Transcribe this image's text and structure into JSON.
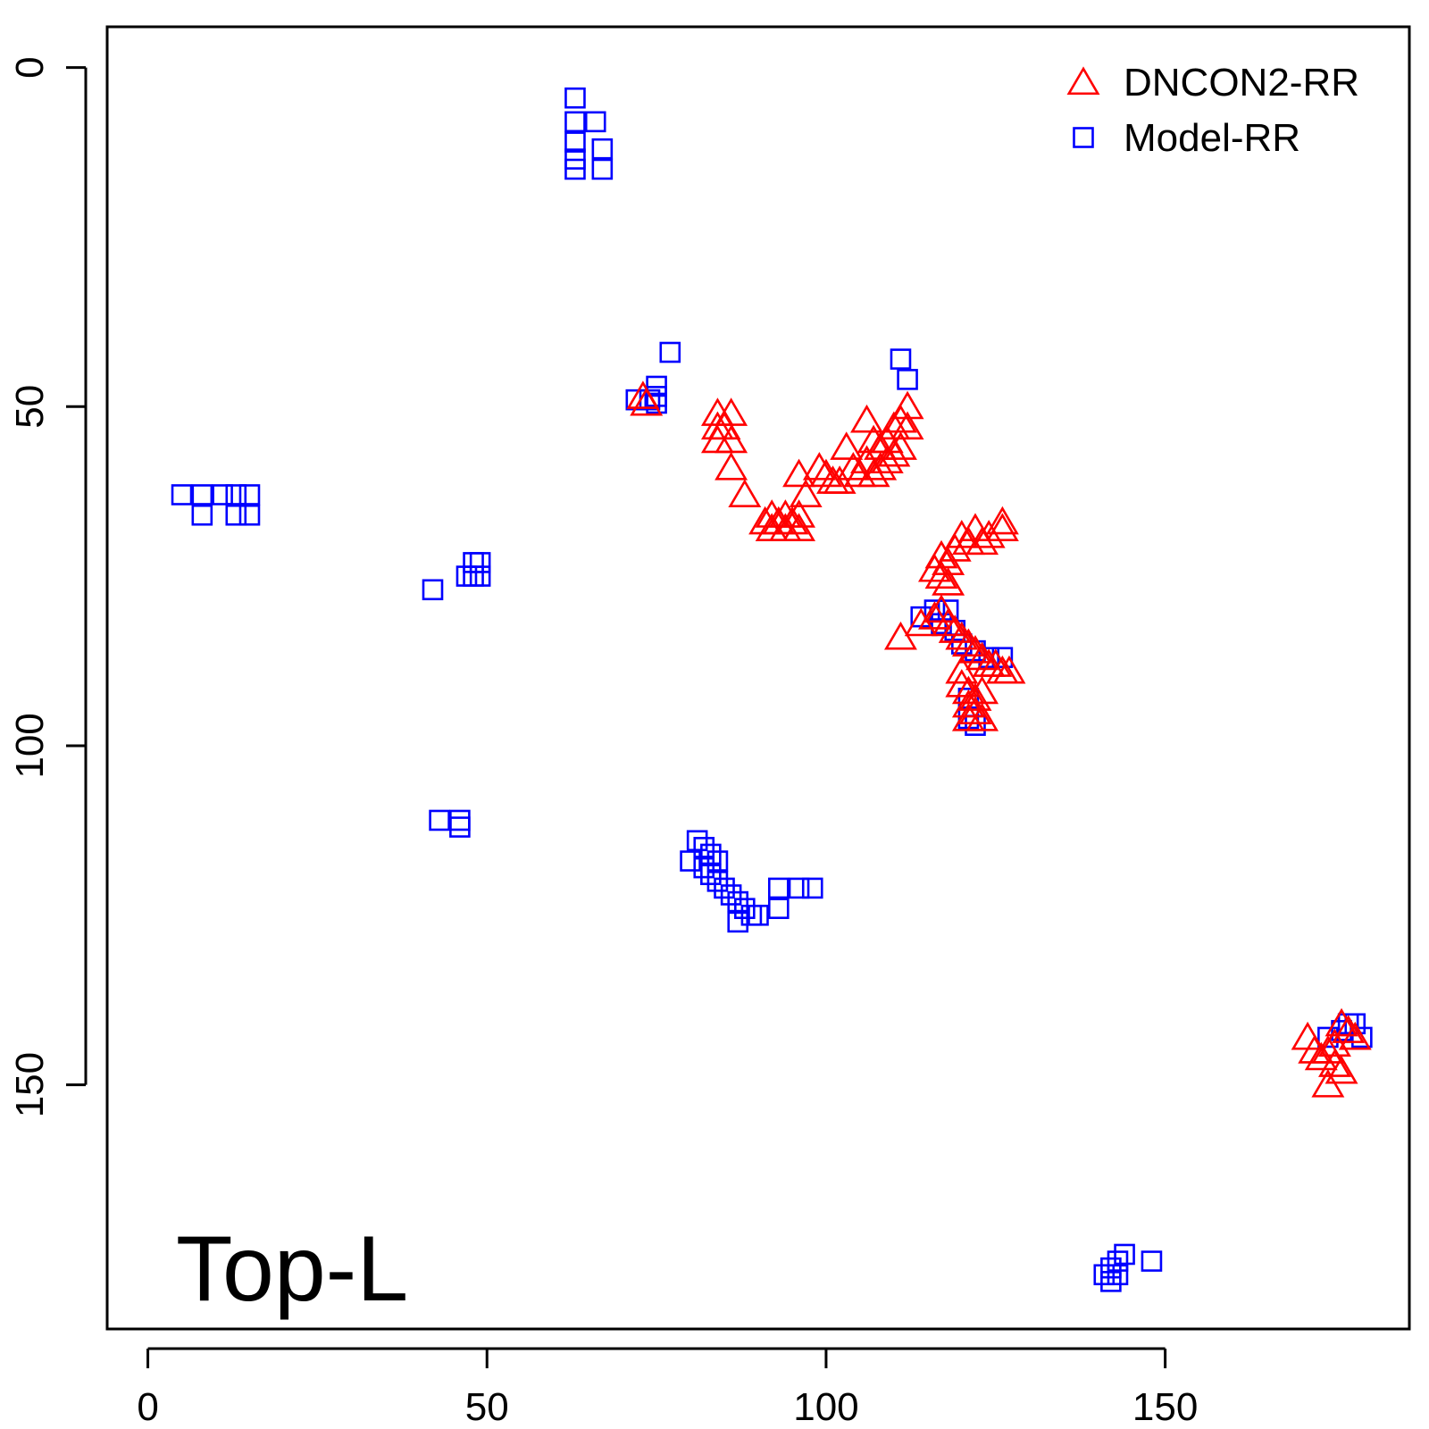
{
  "chart_data": {
    "type": "scatter",
    "title": "",
    "xlabel": "",
    "ylabel": "",
    "annotation": "Top-L",
    "xlim": [
      -6,
      186
    ],
    "ylim": [
      -6,
      186
    ],
    "y_inverted": true,
    "x_ticks": [
      0,
      50,
      100,
      150
    ],
    "y_ticks": [
      0,
      50,
      100,
      150
    ],
    "legend_position": "top-right",
    "series": [
      {
        "name": "DNCON2-RR",
        "marker": "triangle",
        "color": "#ff0000",
        "points": [
          [
            73,
            48.5
          ],
          [
            73.5,
            49.5
          ],
          [
            84,
            51
          ],
          [
            86,
            51
          ],
          [
            84,
            53
          ],
          [
            85,
            53
          ],
          [
            84,
            55
          ],
          [
            86,
            55
          ],
          [
            86,
            59
          ],
          [
            88,
            63
          ],
          [
            92,
            66
          ],
          [
            94,
            66
          ],
          [
            96,
            66
          ],
          [
            91,
            67
          ],
          [
            93,
            67
          ],
          [
            95,
            67
          ],
          [
            92,
            68
          ],
          [
            94,
            68
          ],
          [
            96,
            68
          ],
          [
            96,
            60
          ],
          [
            97,
            63
          ],
          [
            99,
            59
          ],
          [
            100,
            60
          ],
          [
            101,
            61
          ],
          [
            102,
            61
          ],
          [
            103,
            56
          ],
          [
            104,
            59
          ],
          [
            105,
            60
          ],
          [
            106,
            58
          ],
          [
            107,
            60
          ],
          [
            107,
            55
          ],
          [
            108,
            56
          ],
          [
            108,
            59
          ],
          [
            109,
            58
          ],
          [
            109,
            55
          ],
          [
            106,
            52
          ],
          [
            110,
            53
          ],
          [
            111,
            52
          ],
          [
            110,
            57
          ],
          [
            111,
            56
          ],
          [
            112,
            53
          ],
          [
            112,
            50
          ],
          [
            116,
            74
          ],
          [
            117,
            72
          ],
          [
            118,
            73
          ],
          [
            119,
            71
          ],
          [
            120,
            69
          ],
          [
            121,
            70
          ],
          [
            122,
            68
          ],
          [
            123,
            70
          ],
          [
            124,
            69
          ],
          [
            126,
            67
          ],
          [
            126,
            68
          ],
          [
            117,
            75
          ],
          [
            118,
            76
          ],
          [
            111,
            84
          ],
          [
            114,
            82
          ],
          [
            116,
            81
          ],
          [
            117,
            80
          ],
          [
            118,
            82
          ],
          [
            119,
            83
          ],
          [
            120,
            84
          ],
          [
            121,
            85
          ],
          [
            122,
            86
          ],
          [
            123,
            87
          ],
          [
            124,
            88
          ],
          [
            125,
            88
          ],
          [
            126,
            89
          ],
          [
            127,
            89
          ],
          [
            120,
            89
          ],
          [
            120,
            91
          ],
          [
            121,
            92
          ],
          [
            121,
            94
          ],
          [
            122,
            93
          ],
          [
            123,
            92
          ],
          [
            122,
            95
          ],
          [
            123,
            96
          ],
          [
            121,
            96
          ],
          [
            171,
            143
          ],
          [
            172,
            145
          ],
          [
            173,
            146
          ],
          [
            174,
            145
          ],
          [
            175,
            144
          ],
          [
            175,
            147
          ],
          [
            176,
            148
          ],
          [
            174,
            150
          ],
          [
            176,
            141
          ],
          [
            177,
            142
          ],
          [
            178,
            143
          ]
        ]
      },
      {
        "name": "Model-RR",
        "marker": "square",
        "color": "#0000ff",
        "points": [
          [
            63,
            4.5
          ],
          [
            63,
            8
          ],
          [
            63,
            11
          ],
          [
            63,
            13.5
          ],
          [
            63,
            15
          ],
          [
            66,
            8
          ],
          [
            67,
            12
          ],
          [
            67,
            15
          ],
          [
            77,
            42
          ],
          [
            75,
            47
          ],
          [
            75,
            48.5
          ],
          [
            74,
            49
          ],
          [
            75,
            49.5
          ],
          [
            72,
            49
          ],
          [
            111,
            43
          ],
          [
            112,
            46
          ],
          [
            5,
            63
          ],
          [
            8,
            63
          ],
          [
            11,
            63
          ],
          [
            13,
            63
          ],
          [
            15,
            63
          ],
          [
            8,
            66
          ],
          [
            13,
            66
          ],
          [
            15,
            66
          ],
          [
            42,
            77
          ],
          [
            48,
            73
          ],
          [
            49,
            73
          ],
          [
            47,
            75
          ],
          [
            48,
            75
          ],
          [
            49,
            75
          ],
          [
            43,
            111
          ],
          [
            46,
            111
          ],
          [
            46,
            112
          ],
          [
            81,
            114
          ],
          [
            82,
            115
          ],
          [
            83,
            116
          ],
          [
            84,
            117
          ],
          [
            80,
            117
          ],
          [
            82,
            118
          ],
          [
            83,
            119
          ],
          [
            84,
            120
          ],
          [
            85,
            121
          ],
          [
            86,
            122
          ],
          [
            87,
            123
          ],
          [
            88,
            124
          ],
          [
            89,
            125
          ],
          [
            90,
            125
          ],
          [
            87,
            126
          ],
          [
            93,
            121
          ],
          [
            93,
            124
          ],
          [
            96,
            121
          ],
          [
            98,
            121
          ],
          [
            114,
            81
          ],
          [
            116,
            80
          ],
          [
            118,
            80
          ],
          [
            117,
            82
          ],
          [
            119,
            83
          ],
          [
            120,
            85
          ],
          [
            122,
            86
          ],
          [
            124,
            87
          ],
          [
            126,
            87
          ],
          [
            121,
            93
          ],
          [
            121,
            96
          ],
          [
            122,
            97
          ],
          [
            141,
            178
          ],
          [
            142,
            177
          ],
          [
            142,
            179
          ],
          [
            143,
            176
          ],
          [
            143,
            178
          ],
          [
            144,
            175
          ],
          [
            148,
            176
          ],
          [
            174,
            143
          ],
          [
            176,
            142
          ],
          [
            177,
            141
          ],
          [
            178,
            141
          ],
          [
            179,
            143
          ]
        ]
      }
    ]
  }
}
